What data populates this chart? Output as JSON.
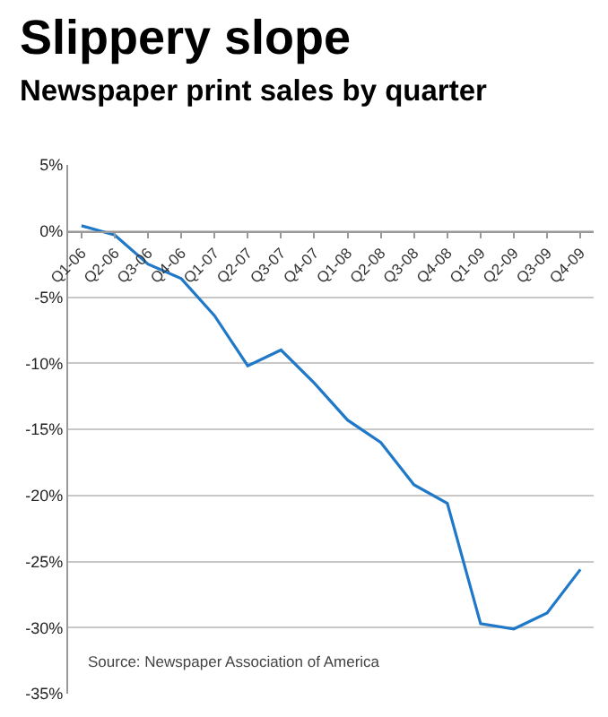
{
  "chart_data": {
    "type": "line",
    "title": "Slippery slope",
    "subtitle": "Newspaper print sales by quarter",
    "categories": [
      "Q1-06",
      "Q2-06",
      "Q3-06",
      "Q4-06",
      "Q1-07",
      "Q2-07",
      "Q3-07",
      "Q4-07",
      "Q1-08",
      "Q2-08",
      "Q3-08",
      "Q4-08",
      "Q1-09",
      "Q2-09",
      "Q3-09",
      "Q4-09"
    ],
    "series": [
      {
        "color": "#1f78c8",
        "values": [
          0.4,
          -0.3,
          -2.5,
          -3.6,
          -6.4,
          -10.2,
          -9.0,
          -11.5,
          -14.3,
          -16.0,
          -19.2,
          -20.6,
          -29.7,
          -30.1,
          -28.9,
          -25.6
        ]
      }
    ],
    "ylim": [
      -35,
      5
    ],
    "yticks": [
      {
        "value": 5,
        "label": "5%"
      },
      {
        "value": 0,
        "label": "0%"
      },
      {
        "value": -5,
        "label": "-5%"
      },
      {
        "value": -10,
        "label": "-10%"
      },
      {
        "value": -15,
        "label": "-15%"
      },
      {
        "value": -20,
        "label": "-20%"
      },
      {
        "value": -25,
        "label": "-25%"
      },
      {
        "value": -30,
        "label": "-30%"
      },
      {
        "value": -35,
        "label": "-35%"
      }
    ],
    "grid": "y",
    "marker": "none",
    "line_style": "solid",
    "annotations": [
      "Source: Newspaper Association of America"
    ]
  }
}
